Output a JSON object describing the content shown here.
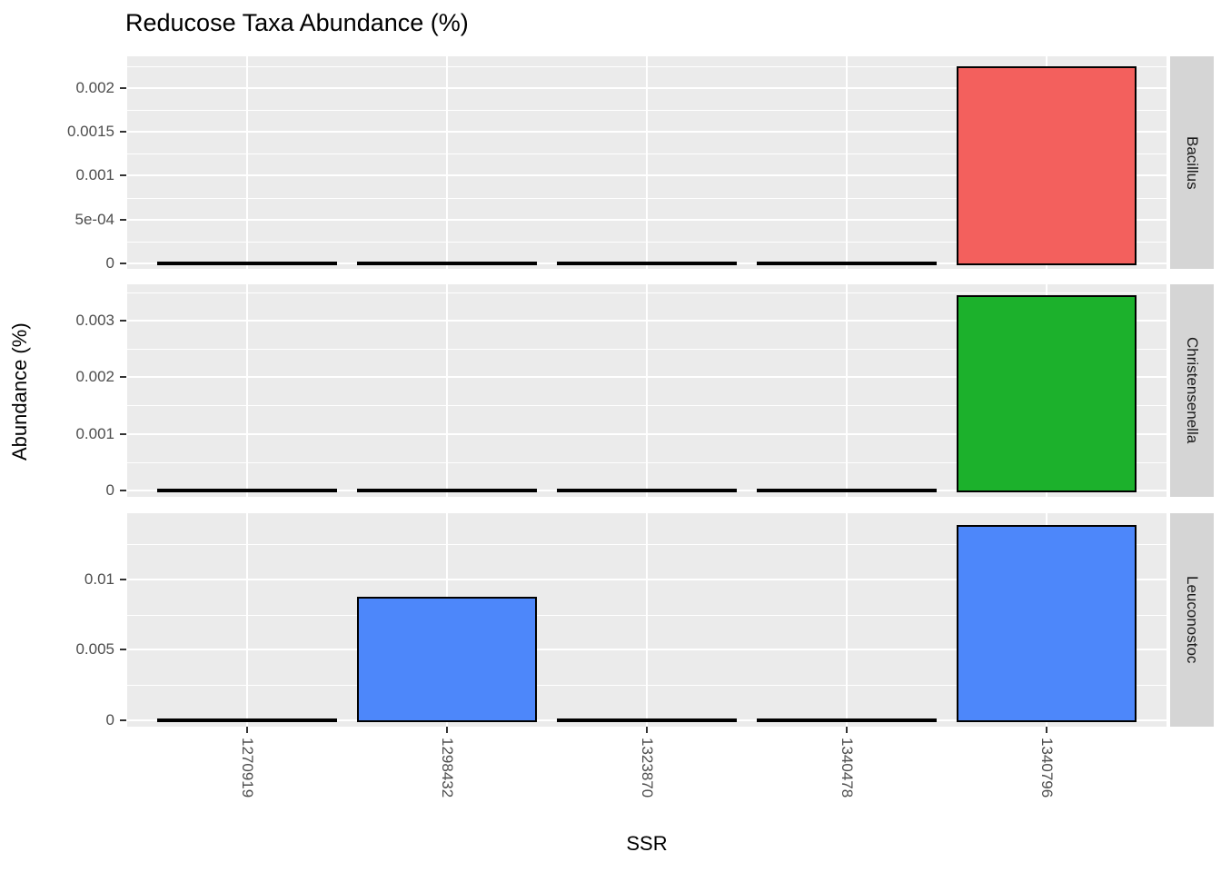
{
  "title": "Reducose Taxa Abundance (%)",
  "x_axis_title": "SSR",
  "y_axis_title": "Abundance (%)",
  "colors": {
    "panel_bg": "#EBEBEB",
    "strip_bg": "#D5D5D5",
    "gridline": "#FFFFFF",
    "bar_stroke": "#000000",
    "tick_label": "#4D4D4D",
    "bacillus_red": "#F3605D",
    "christensenella_green": "#1CB12C",
    "leuconostoc_blue": "#4D87FA"
  },
  "chart_data": {
    "type": "bar",
    "title": "Reducose Taxa Abundance (%)",
    "xlabel": "SSR",
    "ylabel": "Abundance (%)",
    "grid": true,
    "legend": false,
    "facet_layout": "rows",
    "categories": [
      "1270919",
      "1298432",
      "1323870",
      "1340478",
      "1340796"
    ],
    "facets": [
      {
        "label": "Bacillus",
        "color": "#F3605D",
        "values": [
          0,
          0,
          0,
          0,
          0.00225
        ],
        "yticks": [
          0,
          0.0005,
          0.001,
          0.0015,
          0.002
        ],
        "ytick_labels": [
          "0",
          "5e-04",
          "0.001",
          "0.0015",
          "0.002"
        ],
        "ylim": [
          -6.25e-05,
          0.00236
        ]
      },
      {
        "label": "Christensenella",
        "color": "#1CB12C",
        "values": [
          0,
          0,
          0,
          0,
          0.00345
        ],
        "yticks": [
          0,
          0.001,
          0.002,
          0.003
        ],
        "ytick_labels": [
          "0",
          "0.001",
          "0.002",
          "0.003"
        ],
        "ylim": [
          -0.000112,
          0.00364
        ]
      },
      {
        "label": "Leuconostoc",
        "color": "#4D87FA",
        "values": [
          0,
          0.0088,
          0,
          0,
          0.0139
        ],
        "yticks": [
          0,
          0.005,
          0.01
        ],
        "ytick_labels": [
          "0",
          "0.005",
          "0.01"
        ],
        "ylim": [
          -0.000452,
          0.01471
        ]
      }
    ]
  }
}
